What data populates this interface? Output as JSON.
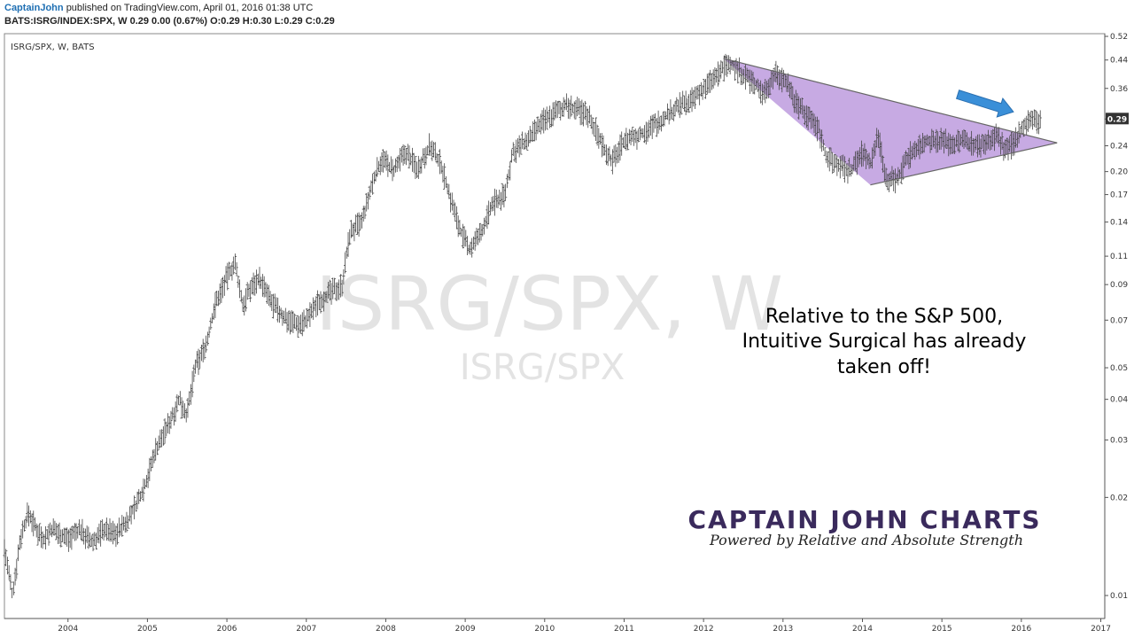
{
  "header": {
    "author": "CaptainJohn",
    "published": "published on TradingView.com, April 01, 2016 01:38 UTC",
    "symbol_line": "BATS:ISRG/INDEX:SPX, W  0.29 0.00 (0.67%) O:0.29 H:0.30 L:0.29 C:0.29"
  },
  "chart_data": {
    "type": "ohlc",
    "title": "ISRG/SPX, W, BATS",
    "watermark_main": "ISRG/SPX, W",
    "watermark_sub": "ISRG/SPX",
    "y_scale": "log",
    "ylim": [
      0.0085,
      0.53
    ],
    "xlim": [
      2003.2,
      2017.05
    ],
    "x_ticks": [
      "2004",
      "2005",
      "2006",
      "2007",
      "2008",
      "2009",
      "2010",
      "2011",
      "2012",
      "2013",
      "2014",
      "2015",
      "2016",
      "2017"
    ],
    "y_ticks": [
      "0.52",
      "0.44",
      "0.36",
      "0.29",
      "0.24",
      "0.20",
      "0.17",
      "0.14",
      "0.11",
      "0.09",
      "0.07",
      "0.05",
      "0.04",
      "0.03",
      "0.02",
      "0.01"
    ],
    "last_value_label": "0.29",
    "series": [
      {
        "points": [
          [
            2003.2,
            0.014
          ],
          [
            2003.3,
            0.01
          ],
          [
            2003.4,
            0.015
          ],
          [
            2003.5,
            0.018
          ],
          [
            2003.6,
            0.016
          ],
          [
            2003.7,
            0.015
          ],
          [
            2003.8,
            0.016
          ],
          [
            2004.0,
            0.015
          ],
          [
            2004.15,
            0.016
          ],
          [
            2004.3,
            0.0145
          ],
          [
            2004.45,
            0.016
          ],
          [
            2004.6,
            0.0155
          ],
          [
            2004.75,
            0.017
          ],
          [
            2004.9,
            0.02
          ],
          [
            2005.0,
            0.023
          ],
          [
            2005.1,
            0.028
          ],
          [
            2005.25,
            0.033
          ],
          [
            2005.4,
            0.04
          ],
          [
            2005.5,
            0.036
          ],
          [
            2005.6,
            0.05
          ],
          [
            2005.75,
            0.06
          ],
          [
            2005.85,
            0.078
          ],
          [
            2006.0,
            0.095
          ],
          [
            2006.1,
            0.105
          ],
          [
            2006.2,
            0.078
          ],
          [
            2006.3,
            0.088
          ],
          [
            2006.4,
            0.095
          ],
          [
            2006.55,
            0.08
          ],
          [
            2006.7,
            0.072
          ],
          [
            2006.9,
            0.068
          ],
          [
            2007.0,
            0.07
          ],
          [
            2007.15,
            0.08
          ],
          [
            2007.3,
            0.085
          ],
          [
            2007.45,
            0.09
          ],
          [
            2007.55,
            0.13
          ],
          [
            2007.7,
            0.14
          ],
          [
            2007.85,
            0.19
          ],
          [
            2007.95,
            0.22
          ],
          [
            2008.1,
            0.2
          ],
          [
            2008.25,
            0.23
          ],
          [
            2008.4,
            0.205
          ],
          [
            2008.55,
            0.24
          ],
          [
            2008.7,
            0.21
          ],
          [
            2008.8,
            0.17
          ],
          [
            2008.95,
            0.13
          ],
          [
            2009.05,
            0.115
          ],
          [
            2009.2,
            0.13
          ],
          [
            2009.35,
            0.16
          ],
          [
            2009.5,
            0.17
          ],
          [
            2009.6,
            0.23
          ],
          [
            2009.8,
            0.25
          ],
          [
            2010.0,
            0.29
          ],
          [
            2010.1,
            0.3
          ],
          [
            2010.25,
            0.32
          ],
          [
            2010.4,
            0.31
          ],
          [
            2010.55,
            0.3
          ],
          [
            2010.7,
            0.25
          ],
          [
            2010.85,
            0.215
          ],
          [
            2011.0,
            0.25
          ],
          [
            2011.2,
            0.26
          ],
          [
            2011.4,
            0.28
          ],
          [
            2011.55,
            0.3
          ],
          [
            2011.7,
            0.32
          ],
          [
            2011.85,
            0.33
          ],
          [
            2012.0,
            0.36
          ],
          [
            2012.15,
            0.39
          ],
          [
            2012.3,
            0.43
          ],
          [
            2012.45,
            0.41
          ],
          [
            2012.6,
            0.38
          ],
          [
            2012.75,
            0.35
          ],
          [
            2012.9,
            0.4
          ],
          [
            2013.05,
            0.38
          ],
          [
            2013.15,
            0.33
          ],
          [
            2013.3,
            0.3
          ],
          [
            2013.45,
            0.27
          ],
          [
            2013.55,
            0.22
          ],
          [
            2013.7,
            0.21
          ],
          [
            2013.85,
            0.2
          ],
          [
            2014.0,
            0.23
          ],
          [
            2014.1,
            0.21
          ],
          [
            2014.2,
            0.26
          ],
          [
            2014.3,
            0.19
          ],
          [
            2014.45,
            0.19
          ],
          [
            2014.55,
            0.22
          ],
          [
            2014.7,
            0.24
          ],
          [
            2014.85,
            0.25
          ],
          [
            2015.0,
            0.25
          ],
          [
            2015.15,
            0.245
          ],
          [
            2015.3,
            0.25
          ],
          [
            2015.45,
            0.24
          ],
          [
            2015.6,
            0.25
          ],
          [
            2015.7,
            0.26
          ],
          [
            2015.8,
            0.23
          ],
          [
            2015.9,
            0.245
          ],
          [
            2016.0,
            0.27
          ],
          [
            2016.1,
            0.29
          ],
          [
            2016.2,
            0.285
          ],
          [
            2016.25,
            0.29
          ]
        ]
      }
    ],
    "annotations": {
      "triangle_top": [
        [
          2012.25,
          0.445
        ],
        [
          2016.45,
          0.245
        ]
      ],
      "triangle_bottom": [
        [
          2014.1,
          0.182
        ],
        [
          2016.45,
          0.245
        ]
      ],
      "triangle_fill": "#b48ed9",
      "arrow_color": "#3a8fd8",
      "text_lines": [
        "Relative to the S&P 500,",
        "Intuitive Surgical has already",
        "taken off!"
      ]
    }
  },
  "brand": {
    "name": "CAPTAIN  JOHN  CHARTS",
    "tagline": "Powered by Relative and  Absolute Strength"
  }
}
